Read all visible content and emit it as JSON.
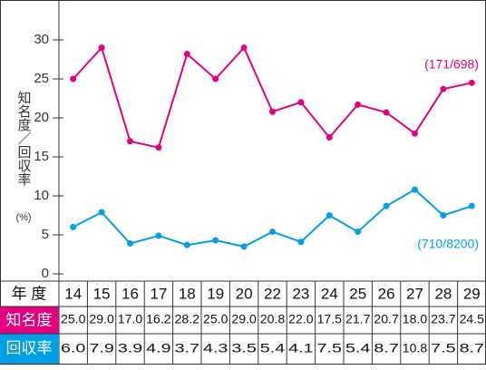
{
  "chart_data": {
    "type": "line",
    "ylabel": "知名度／回収率",
    "yunit": "(%)",
    "xlabel": "年 度",
    "categories": [
      "14",
      "15",
      "16",
      "17",
      "18",
      "19",
      "20",
      "22",
      "23",
      "24",
      "25",
      "26",
      "27",
      "28",
      "29"
    ],
    "series": [
      {
        "name": "知名度",
        "color": "#e4007f",
        "values": [
          25.0,
          29.0,
          17.0,
          16.2,
          28.2,
          25.0,
          29.0,
          20.8,
          22.0,
          17.5,
          21.7,
          20.7,
          18.0,
          23.7,
          24.5
        ],
        "value_labels": [
          "25.0",
          "29.0",
          "17.0",
          "16.2",
          "28.2",
          "25.0",
          "29.0",
          "20.8",
          "22.0",
          "17.5",
          "21.7",
          "20.7",
          "18.0",
          "23.7",
          "24.5"
        ],
        "annotation": "(171/698)"
      },
      {
        "name": "回収率",
        "color": "#00a0e9",
        "values": [
          6.0,
          7.9,
          3.9,
          4.9,
          3.7,
          4.3,
          3.5,
          5.4,
          4.1,
          7.5,
          5.4,
          8.7,
          10.8,
          7.5,
          8.7
        ],
        "value_labels": [
          "6.0",
          "7.9",
          "3.9",
          "4.9",
          "3.7",
          "4.3",
          "3.5",
          "5.4",
          "4.1",
          "7.5",
          "5.4",
          "8.7",
          "10.8",
          "7.5",
          "8.7"
        ],
        "annotation": "(710/8200)"
      }
    ],
    "ylim": [
      0,
      35
    ],
    "yticks": [
      0,
      5,
      10,
      15,
      20,
      25,
      30
    ]
  }
}
